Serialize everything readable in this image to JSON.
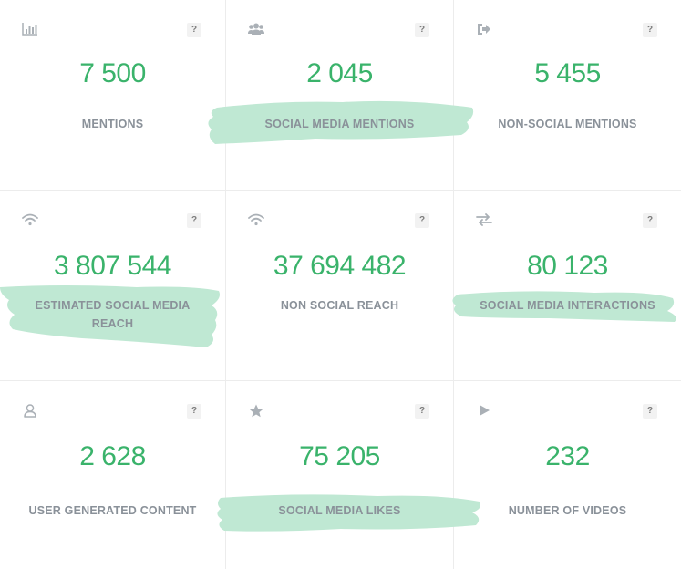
{
  "metrics": [
    {
      "id": "mentions",
      "icon": "bar-chart-icon",
      "value": "7 500",
      "label": "MENTIONS",
      "help": "?"
    },
    {
      "id": "social-media-mentions",
      "icon": "users-icon",
      "value": "2 045",
      "label": "SOCIAL MEDIA MENTIONS",
      "help": "?"
    },
    {
      "id": "non-social-mentions",
      "icon": "sign-out-icon",
      "value": "5 455",
      "label": "NON-SOCIAL MENTIONS",
      "help": "?"
    },
    {
      "id": "estimated-social-media-reach",
      "icon": "wifi-icon",
      "value": "3 807 544",
      "label": "ESTIMATED SOCIAL MEDIA REACH",
      "help": "?"
    },
    {
      "id": "non-social-reach",
      "icon": "wifi-icon",
      "value": "37 694 482",
      "label": "NON SOCIAL REACH",
      "help": "?"
    },
    {
      "id": "social-media-interactions",
      "icon": "exchange-icon",
      "value": "80 123",
      "label": "SOCIAL MEDIA INTERACTIONS",
      "help": "?"
    },
    {
      "id": "user-generated-content",
      "icon": "user-icon",
      "value": "2 628",
      "label": "USER GENERATED CONTENT",
      "help": "?"
    },
    {
      "id": "social-media-likes",
      "icon": "star-icon",
      "value": "75 205",
      "label": "SOCIAL MEDIA LIKES",
      "help": "?"
    },
    {
      "id": "number-of-videos",
      "icon": "play-icon",
      "value": "232",
      "label": "NUMBER OF VIDEOS",
      "help": "?"
    }
  ],
  "colors": {
    "value": "#3ab36b",
    "label": "#8a9199",
    "highlight": "#bfe8d3",
    "icon": "#aab0b6"
  }
}
